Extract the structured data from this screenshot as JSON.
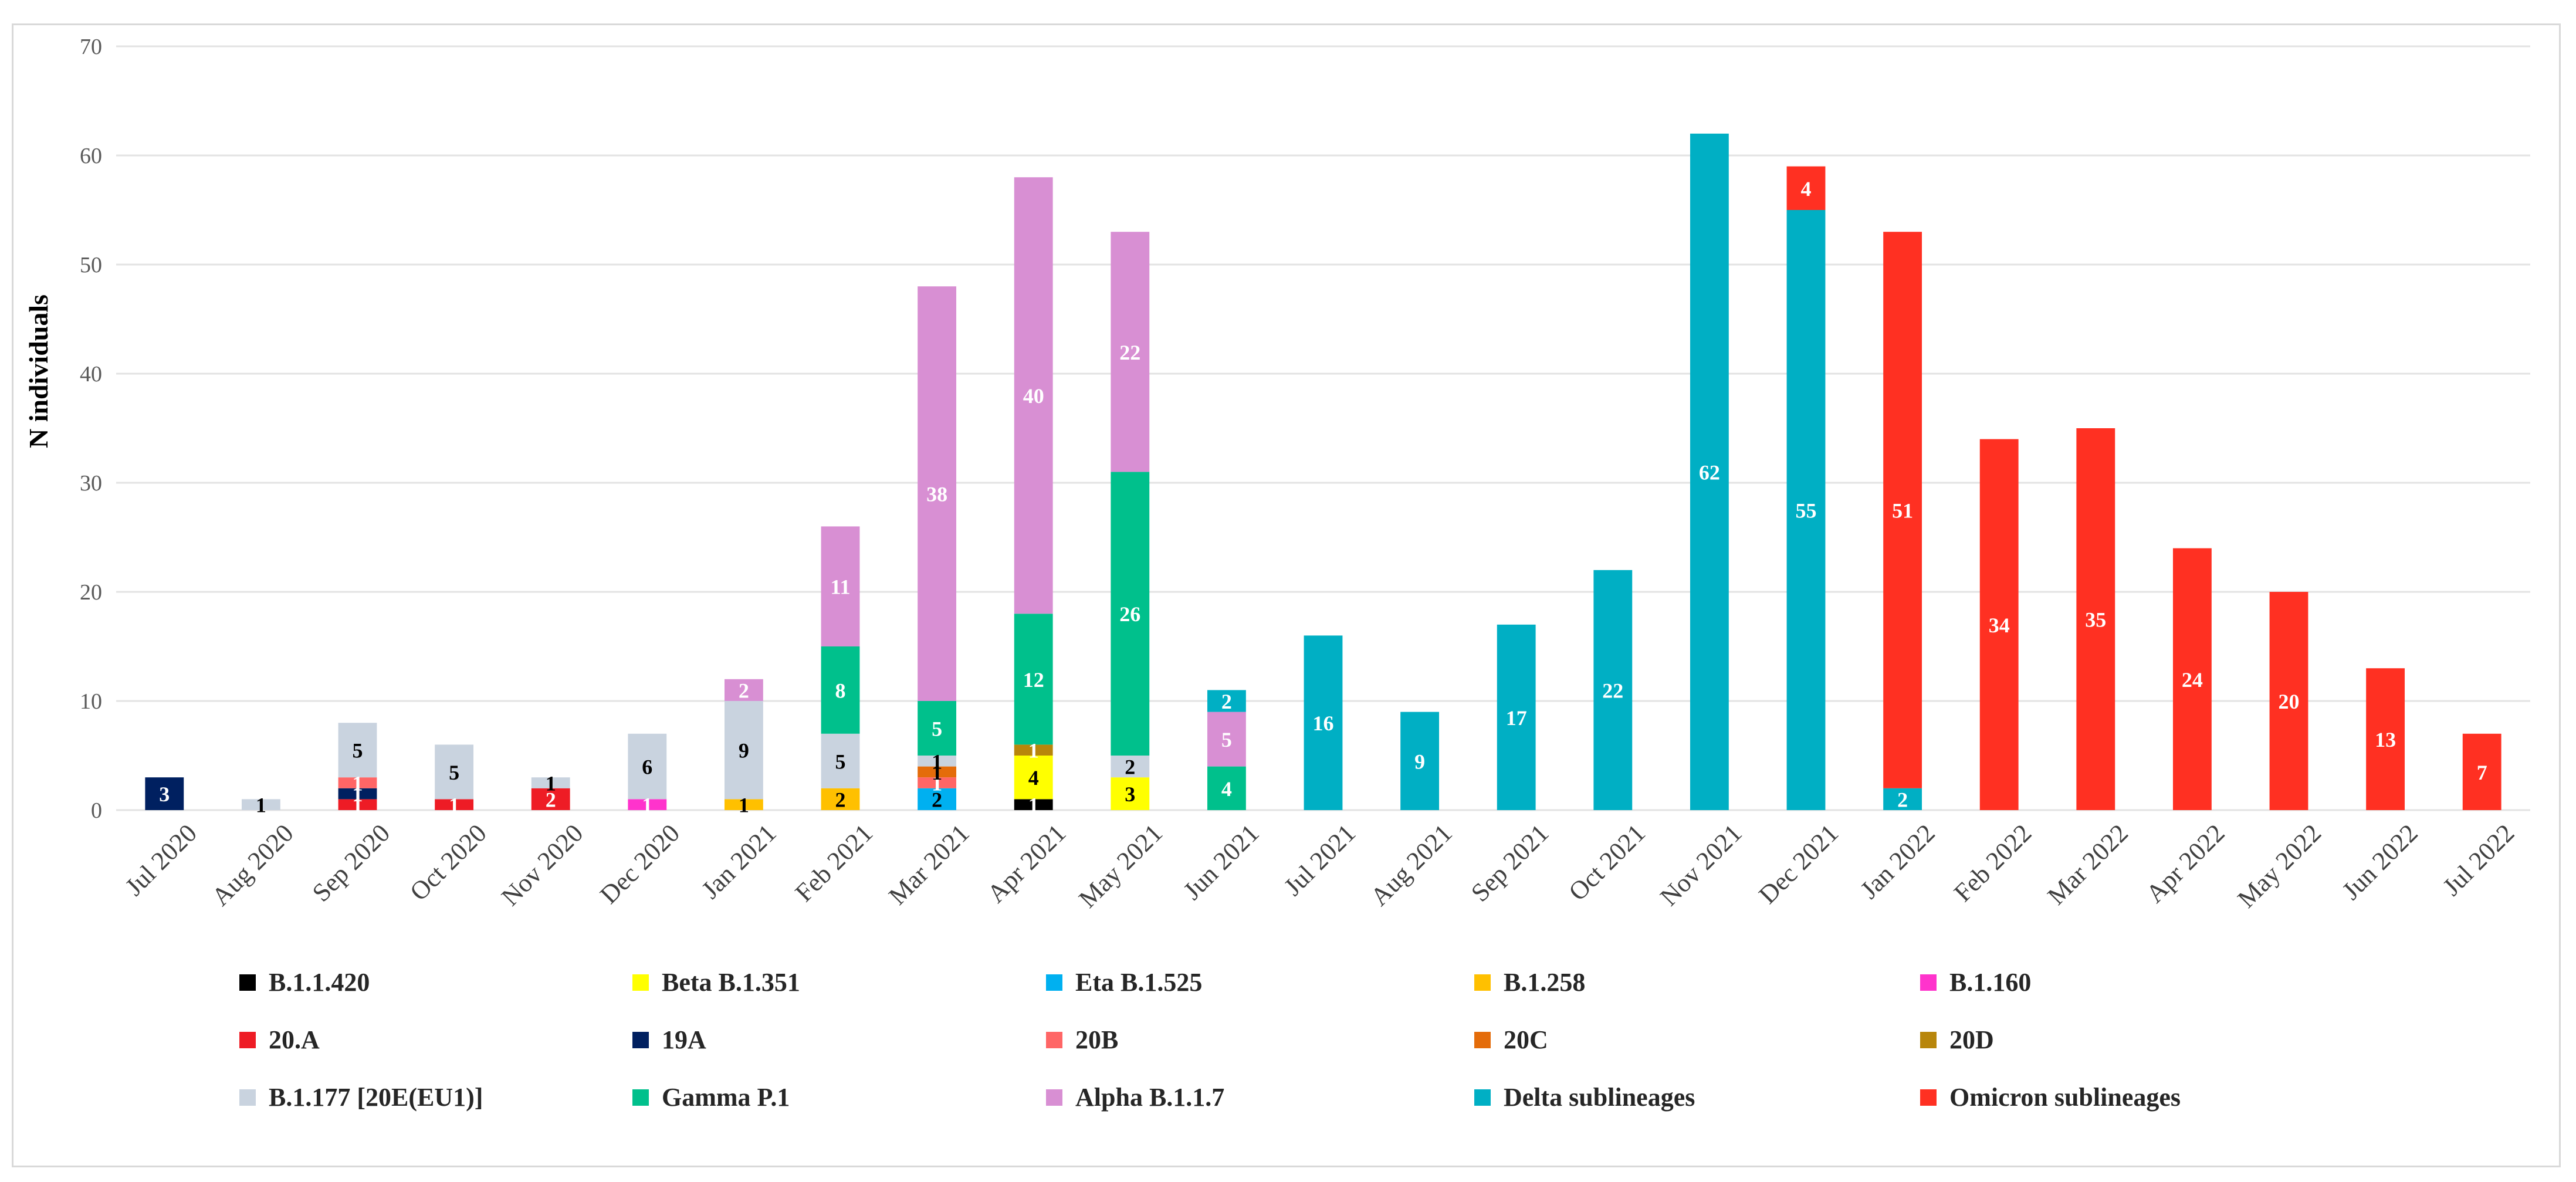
{
  "chart_data": {
    "type": "bar",
    "stacked": true,
    "title": "",
    "xlabel": "",
    "ylabel": "N individuals",
    "ylim": [
      0,
      70
    ],
    "yticks": [
      0,
      10,
      20,
      30,
      40,
      50,
      60,
      70
    ],
    "grid": true,
    "legend_position": "bottom",
    "categories": [
      "Jul 2020",
      "Aug 2020",
      "Sep 2020",
      "Oct 2020",
      "Nov 2020",
      "Dec 2020",
      "Jan 2021",
      "Feb 2021",
      "Mar 2021",
      "Apr 2021",
      "May 2021",
      "Jun 2021",
      "Jul 2021",
      "Aug 2021",
      "Sep 2021",
      "Oct 2021",
      "Nov 2021",
      "Dec 2021",
      "Jan 2022",
      "Feb 2022",
      "Mar 2022",
      "Apr 2022",
      "May 2022",
      "Jun 2022",
      "Jul 2022"
    ],
    "series": [
      {
        "name": "B.1.1.420",
        "color": "#000000",
        "label_color": "#ffffff",
        "values": [
          0,
          0,
          0,
          0,
          0,
          0,
          0,
          0,
          0,
          1,
          0,
          0,
          0,
          0,
          0,
          0,
          0,
          0,
          0,
          0,
          0,
          0,
          0,
          0,
          0
        ]
      },
      {
        "name": "Beta B.1.351",
        "color": "#ffff00",
        "label_color": "#000000",
        "values": [
          0,
          0,
          0,
          0,
          0,
          0,
          0,
          0,
          0,
          4,
          3,
          0,
          0,
          0,
          0,
          0,
          0,
          0,
          0,
          0,
          0,
          0,
          0,
          0,
          0
        ]
      },
      {
        "name": "Eta B.1.525",
        "color": "#00b0f0",
        "label_color": "#000000",
        "values": [
          0,
          0,
          0,
          0,
          0,
          0,
          0,
          0,
          2,
          0,
          0,
          0,
          0,
          0,
          0,
          0,
          0,
          0,
          0,
          0,
          0,
          0,
          0,
          0,
          0
        ]
      },
      {
        "name": "B.1.258",
        "color": "#ffc000",
        "label_color": "#000000",
        "values": [
          0,
          0,
          0,
          0,
          0,
          0,
          1,
          2,
          0,
          0,
          0,
          0,
          0,
          0,
          0,
          0,
          0,
          0,
          0,
          0,
          0,
          0,
          0,
          0,
          0
        ]
      },
      {
        "name": "B.1.160",
        "color": "#ff33cc",
        "label_color": "#ffffff",
        "values": [
          0,
          0,
          0,
          0,
          0,
          1,
          0,
          0,
          0,
          0,
          0,
          0,
          0,
          0,
          0,
          0,
          0,
          0,
          0,
          0,
          0,
          0,
          0,
          0,
          0
        ]
      },
      {
        "name": "20.A",
        "color": "#ee1c25",
        "label_color": "#ffffff",
        "values": [
          0,
          0,
          1,
          1,
          2,
          0,
          0,
          0,
          0,
          0,
          0,
          0,
          0,
          0,
          0,
          0,
          0,
          0,
          0,
          0,
          0,
          0,
          0,
          0,
          0
        ]
      },
      {
        "name": "19A",
        "color": "#002060",
        "label_color": "#ffffff",
        "values": [
          3,
          0,
          1,
          0,
          0,
          0,
          0,
          0,
          0,
          0,
          0,
          0,
          0,
          0,
          0,
          0,
          0,
          0,
          0,
          0,
          0,
          0,
          0,
          0,
          0
        ]
      },
      {
        "name": "20B",
        "color": "#ff6666",
        "label_color": "#ffffff",
        "values": [
          0,
          0,
          1,
          0,
          0,
          0,
          0,
          0,
          1,
          0,
          0,
          0,
          0,
          0,
          0,
          0,
          0,
          0,
          0,
          0,
          0,
          0,
          0,
          0,
          0
        ]
      },
      {
        "name": "20C",
        "color": "#e46c0a",
        "label_color": "#000000",
        "values": [
          0,
          0,
          0,
          0,
          0,
          0,
          0,
          0,
          1,
          0,
          0,
          0,
          0,
          0,
          0,
          0,
          0,
          0,
          0,
          0,
          0,
          0,
          0,
          0,
          0
        ]
      },
      {
        "name": "20D",
        "color": "#b8860b",
        "label_color": "#ffffff",
        "values": [
          0,
          0,
          0,
          0,
          0,
          0,
          0,
          0,
          0,
          1,
          0,
          0,
          0,
          0,
          0,
          0,
          0,
          0,
          0,
          0,
          0,
          0,
          0,
          0,
          0
        ]
      },
      {
        "name": "B.1.177 [20E(EU1)]",
        "color": "#c9d3df",
        "label_color": "#000000",
        "values": [
          0,
          1,
          5,
          5,
          1,
          6,
          9,
          5,
          1,
          0,
          2,
          0,
          0,
          0,
          0,
          0,
          0,
          0,
          0,
          0,
          0,
          0,
          0,
          0,
          0
        ]
      },
      {
        "name": "Gamma P.1",
        "color": "#00c08c",
        "label_color": "#ffffff",
        "values": [
          0,
          0,
          0,
          0,
          0,
          0,
          0,
          8,
          5,
          12,
          26,
          4,
          0,
          0,
          0,
          0,
          0,
          0,
          0,
          0,
          0,
          0,
          0,
          0,
          0
        ]
      },
      {
        "name": "Alpha B.1.1.7",
        "color": "#d88fd3",
        "label_color": "#ffffff",
        "values": [
          0,
          0,
          0,
          0,
          0,
          0,
          2,
          11,
          38,
          40,
          22,
          5,
          0,
          0,
          0,
          0,
          0,
          0,
          0,
          0,
          0,
          0,
          0,
          0,
          0
        ]
      },
      {
        "name": "Delta sublineages",
        "color": "#00afc4",
        "label_color": "#ffffff",
        "values": [
          0,
          0,
          0,
          0,
          0,
          0,
          0,
          0,
          0,
          0,
          0,
          2,
          16,
          9,
          17,
          22,
          62,
          55,
          2,
          0,
          0,
          0,
          0,
          0,
          0
        ]
      },
      {
        "name": "Omicron sublineages",
        "color": "#ff3022",
        "label_color": "#ffffff",
        "values": [
          0,
          0,
          0,
          0,
          0,
          0,
          0,
          0,
          0,
          0,
          0,
          0,
          0,
          0,
          0,
          0,
          0,
          4,
          51,
          34,
          35,
          24,
          20,
          13,
          7
        ]
      }
    ]
  }
}
